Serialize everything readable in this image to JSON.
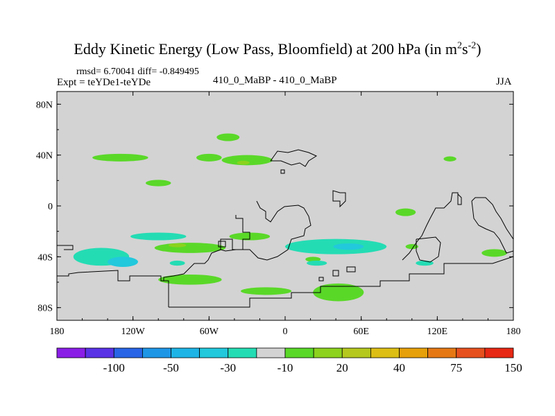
{
  "page": {
    "title_main": "Eddy Kinetic Energy (Low Pass, Bloomfield) at 200 hPa (in m",
    "title_sup1": "2",
    "title_mid": "s",
    "title_sup2": "-2",
    "title_end": ")",
    "rmsd_line": "rmsd= 6.70041 diff= -0.849495",
    "expt_line": "Expt = teYDe1-teYDe",
    "center_label": "410_0_MaBP - 410_0_MaBP",
    "season": "JJA"
  },
  "colors": {
    "background_field": "#d3d3d3",
    "coast": "#000000",
    "palette": [
      "#8a1ee6",
      "#5a32e6",
      "#2864e6",
      "#1e96e6",
      "#1eb4e6",
      "#22c8dc",
      "#24dcb4",
      "#d3d3d3",
      "#5ad828",
      "#8cd21e",
      "#b4c81e",
      "#dcbe14",
      "#e6a00a",
      "#e67814",
      "#e6501e",
      "#e62814"
    ]
  },
  "chart_data": {
    "type": "heatmap",
    "title": "Eddy Kinetic Energy (Low Pass, Bloomfield) at 200 hPa (in m^2 s^-2)",
    "subtitle": "410_0_MaBP - 410_0_MaBP",
    "xlabel": "",
    "ylabel": "",
    "xlim": [
      -180,
      180
    ],
    "ylim": [
      -90,
      90
    ],
    "x_ticks": [
      -180,
      -120,
      -60,
      0,
      60,
      120,
      180
    ],
    "x_tick_labels": [
      "180",
      "120W",
      "60W",
      "0",
      "60E",
      "120E",
      "180"
    ],
    "y_ticks": [
      80,
      40,
      0,
      -40,
      -80
    ],
    "y_tick_labels": [
      "80N",
      "40N",
      "0",
      "40S",
      "80S"
    ],
    "colorbar_labels": [
      "-100",
      "-50",
      "-30",
      "-10",
      "20",
      "40",
      "75",
      "150"
    ],
    "anomalies": [
      {
        "lon": -130,
        "lat": 38,
        "dlon": 22,
        "dlat": 3,
        "level": "pos",
        "value": 10
      },
      {
        "lon": -60,
        "lat": 38,
        "dlon": 10,
        "dlat": 3,
        "level": "pos",
        "value": 10
      },
      {
        "lon": -45,
        "lat": 54,
        "dlon": 9,
        "dlat": 3,
        "level": "pos",
        "value": 20
      },
      {
        "lon": -100,
        "lat": 18,
        "dlon": 10,
        "dlat": 2.5,
        "level": "pos",
        "value": 10
      },
      {
        "lon": -30,
        "lat": 36,
        "dlon": 20,
        "dlat": 4,
        "level": "pos",
        "value": 20
      },
      {
        "lon": -33,
        "lat": 34,
        "dlon": 5,
        "dlat": 1.5,
        "level": "pos2",
        "value": 40
      },
      {
        "lon": 95,
        "lat": -5,
        "dlon": 8,
        "dlat": 3,
        "level": "pos",
        "value": 20
      },
      {
        "lon": 130,
        "lat": 37,
        "dlon": 5,
        "dlat": 2,
        "level": "pos",
        "value": 20
      },
      {
        "lon": -145,
        "lat": -40,
        "dlon": 22,
        "dlat": 7,
        "level": "neg",
        "value": -10
      },
      {
        "lon": -128,
        "lat": -44,
        "dlon": 12,
        "dlat": 4,
        "level": "neg2",
        "value": -30
      },
      {
        "lon": -100,
        "lat": -24,
        "dlon": 22,
        "dlat": 3,
        "level": "neg",
        "value": -10
      },
      {
        "lon": -75,
        "lat": -33,
        "dlon": 28,
        "dlat": 4,
        "level": "pos",
        "value": 20
      },
      {
        "lon": -85,
        "lat": -31,
        "dlon": 7,
        "dlat": 1.5,
        "level": "pos2",
        "value": 40
      },
      {
        "lon": -28,
        "lat": -24,
        "dlon": 16,
        "dlat": 3,
        "level": "pos",
        "value": 20
      },
      {
        "lon": 40,
        "lat": -32,
        "dlon": 40,
        "dlat": 6,
        "level": "neg",
        "value": -10
      },
      {
        "lon": 50,
        "lat": -32,
        "dlon": 12,
        "dlat": 2.5,
        "level": "neg2",
        "value": -30
      },
      {
        "lon": -75,
        "lat": -58,
        "dlon": 25,
        "dlat": 4,
        "level": "pos",
        "value": 20
      },
      {
        "lon": -15,
        "lat": -67,
        "dlon": 20,
        "dlat": 3,
        "level": "pos",
        "value": 20
      },
      {
        "lon": 42,
        "lat": -68,
        "dlon": 20,
        "dlat": 7,
        "level": "pos",
        "value": 20
      },
      {
        "lon": 110,
        "lat": -45,
        "dlon": 7,
        "dlat": 2,
        "level": "neg",
        "value": -10
      },
      {
        "lon": 100,
        "lat": -32,
        "dlon": 5,
        "dlat": 2,
        "level": "pos",
        "value": 20
      },
      {
        "lon": 165,
        "lat": -37,
        "dlon": 10,
        "dlat": 3,
        "level": "pos",
        "value": 20
      },
      {
        "lon": 22,
        "lat": -42,
        "dlon": 6,
        "dlat": 2,
        "level": "pos",
        "value": 20
      },
      {
        "lon": -85,
        "lat": -45,
        "dlon": 6,
        "dlat": 2,
        "level": "neg",
        "value": -10
      },
      {
        "lon": 25,
        "lat": -45,
        "dlon": 8,
        "dlat": 2,
        "level": "neg",
        "value": -10
      }
    ]
  }
}
